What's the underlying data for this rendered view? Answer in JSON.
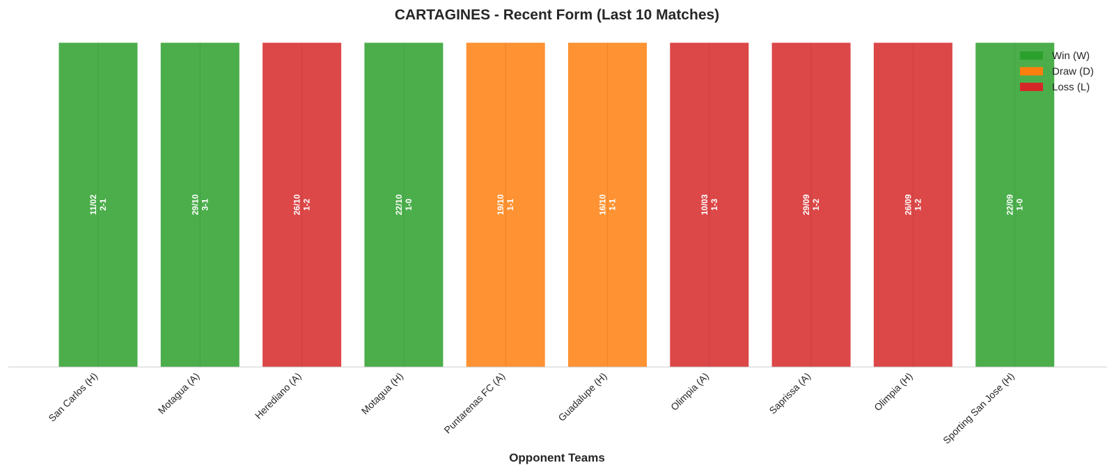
{
  "chart_data": {
    "type": "bar",
    "title": "CARTAGINES - Recent Form (Last 10 Matches)",
    "xlabel": "Opponent Teams",
    "ylabel": "",
    "categories": [
      "San Carlos (H)",
      "Motagua (A)",
      "Herediano (A)",
      "Motagua (H)",
      "Puntarenas FC (A)",
      "Guadalupe (H)",
      "Olimpia (A)",
      "Saprissa (A)",
      "Olimpia (H)",
      "Sporting San Jose (H)"
    ],
    "values": [
      1,
      1,
      1,
      1,
      1,
      1,
      1,
      1,
      1,
      1
    ],
    "results": [
      "W",
      "W",
      "L",
      "W",
      "D",
      "D",
      "L",
      "L",
      "L",
      "W"
    ],
    "dates": [
      "11/02",
      "29/10",
      "26/10",
      "22/10",
      "19/10",
      "16/10",
      "10/03",
      "29/09",
      "26/09",
      "22/09"
    ],
    "scores": [
      "2-1",
      "3-1",
      "1-2",
      "1-0",
      "1-1",
      "1-1",
      "1-3",
      "1-2",
      "1-2",
      "1-0"
    ],
    "ylim": [
      0,
      1
    ],
    "legend": {
      "position": "top-right",
      "entries": [
        {
          "key": "W",
          "label": "Win (W)",
          "color": "#2ca02c"
        },
        {
          "key": "D",
          "label": "Draw (D)",
          "color": "#ff7f0e"
        },
        {
          "key": "L",
          "label": "Loss (L)",
          "color": "#d62728"
        }
      ]
    },
    "grid": false
  }
}
